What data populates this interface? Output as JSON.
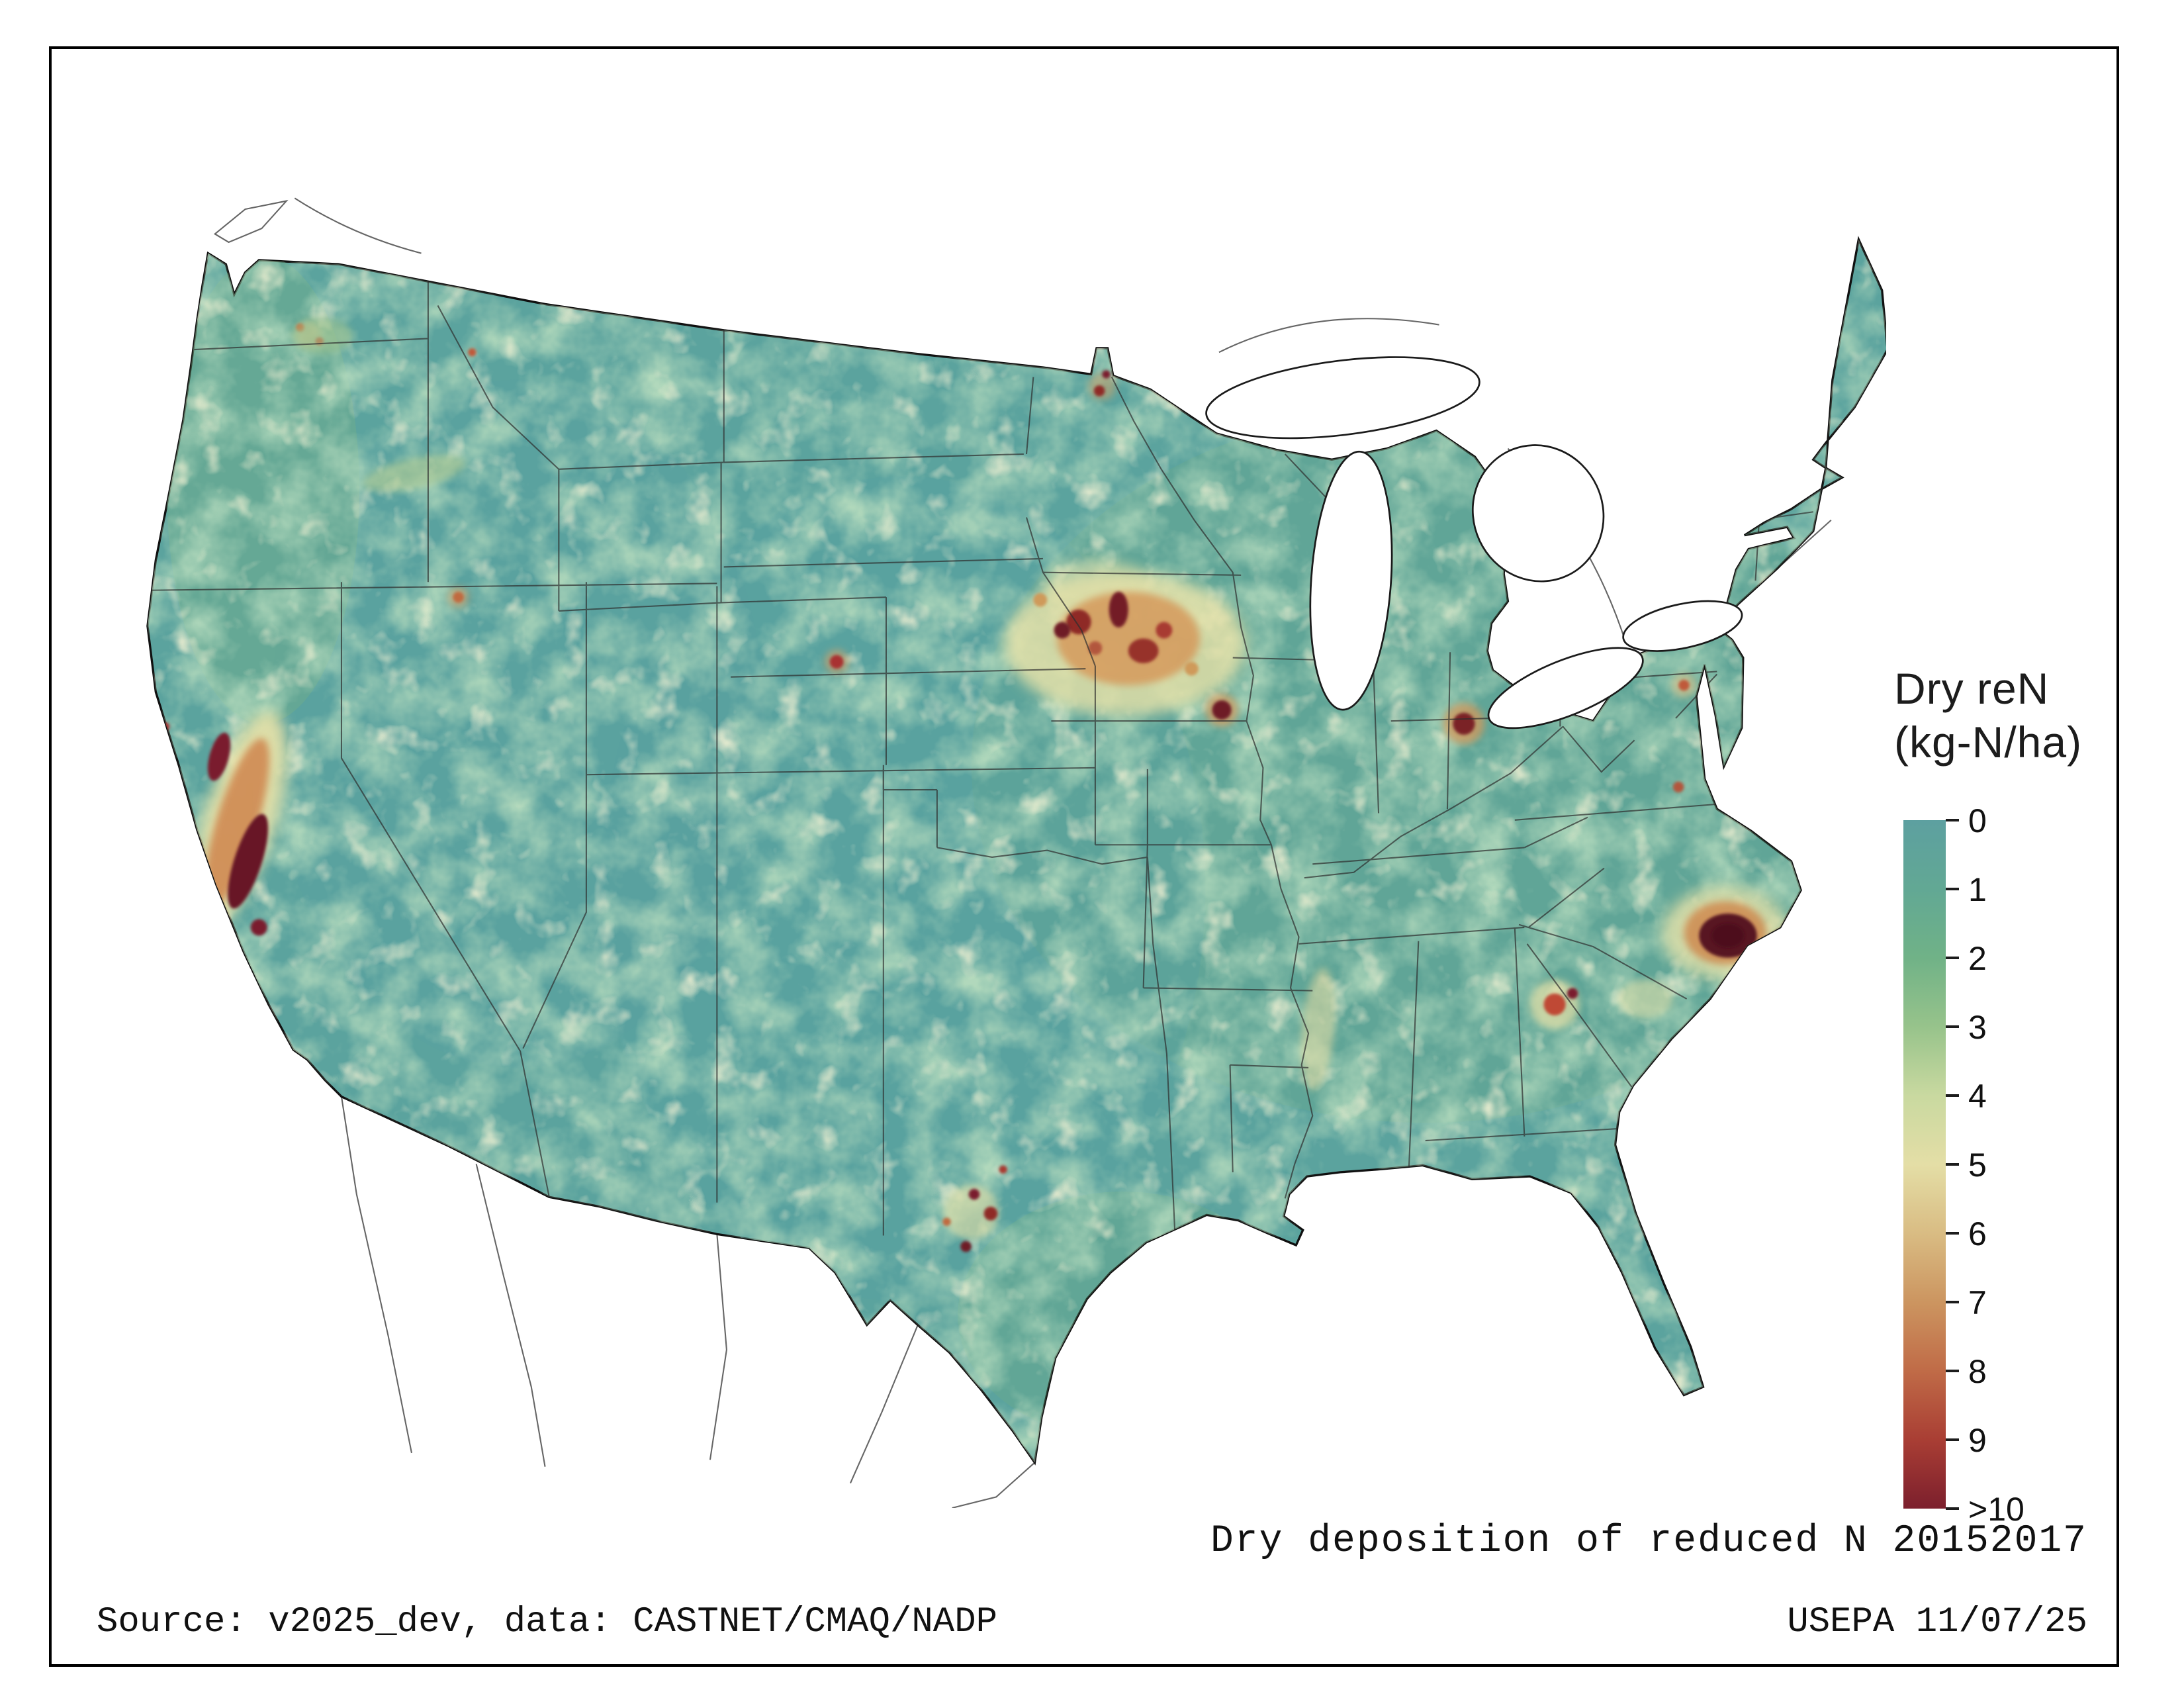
{
  "figure": {
    "background": "#ffffff",
    "border_color": "#000000"
  },
  "legend": {
    "title_line1": "Dry reN",
    "title_line2": "(kg-N/ha)",
    "ticks": [
      "0",
      "1",
      "2",
      "3",
      "4",
      "5",
      "6",
      "7",
      "8",
      "9",
      ">10"
    ],
    "colors": [
      "#5da0a0",
      "#62a894",
      "#70b287",
      "#97c38b",
      "#c9d9a0",
      "#e4dea6",
      "#d9bc83",
      "#cc9560",
      "#c06b47",
      "#a93e34",
      "#7c1f2d"
    ]
  },
  "captions": {
    "title": "Dry deposition of reduced N 20152017",
    "source": "Source: v2025_dev, data: CASTNET/CMAQ/NADP",
    "agency_date": "USEPA 11/07/25"
  },
  "map": {
    "base_color": "#5ba39e"
  }
}
